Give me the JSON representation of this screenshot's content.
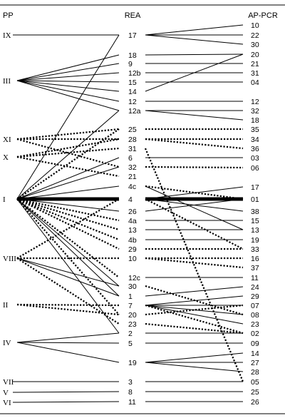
{
  "headers": {
    "left": "PP",
    "center": "REA",
    "right": "AP-PCR"
  },
  "pp": [
    "IX",
    "III",
    "XI",
    "X",
    "I",
    "VIII",
    "II",
    "IV",
    "VII",
    "V",
    "VI"
  ],
  "rea": [
    "17",
    "18",
    "9",
    "12b",
    "15",
    "14",
    "12",
    "12a",
    "25",
    "28",
    "31",
    "6",
    "32",
    "21",
    "4c",
    "4",
    "26",
    "4a",
    "13",
    "4b",
    "29",
    "10",
    "12c",
    "30",
    "1",
    "7",
    "20",
    "23",
    "2",
    "5",
    "19",
    "3",
    "8",
    "11"
  ],
  "ap": [
    "10",
    "22",
    "30",
    "20",
    "21",
    "31",
    "04",
    "12",
    "32",
    "18",
    "35",
    "34",
    "36",
    "03",
    "06",
    "17",
    "01",
    "38",
    "15",
    "13",
    "19",
    "33",
    "16",
    "37",
    "11",
    "24",
    "29",
    "07",
    "08",
    "23",
    "02",
    "09",
    "14",
    "27",
    "28",
    "05",
    "25",
    "26"
  ]
}
